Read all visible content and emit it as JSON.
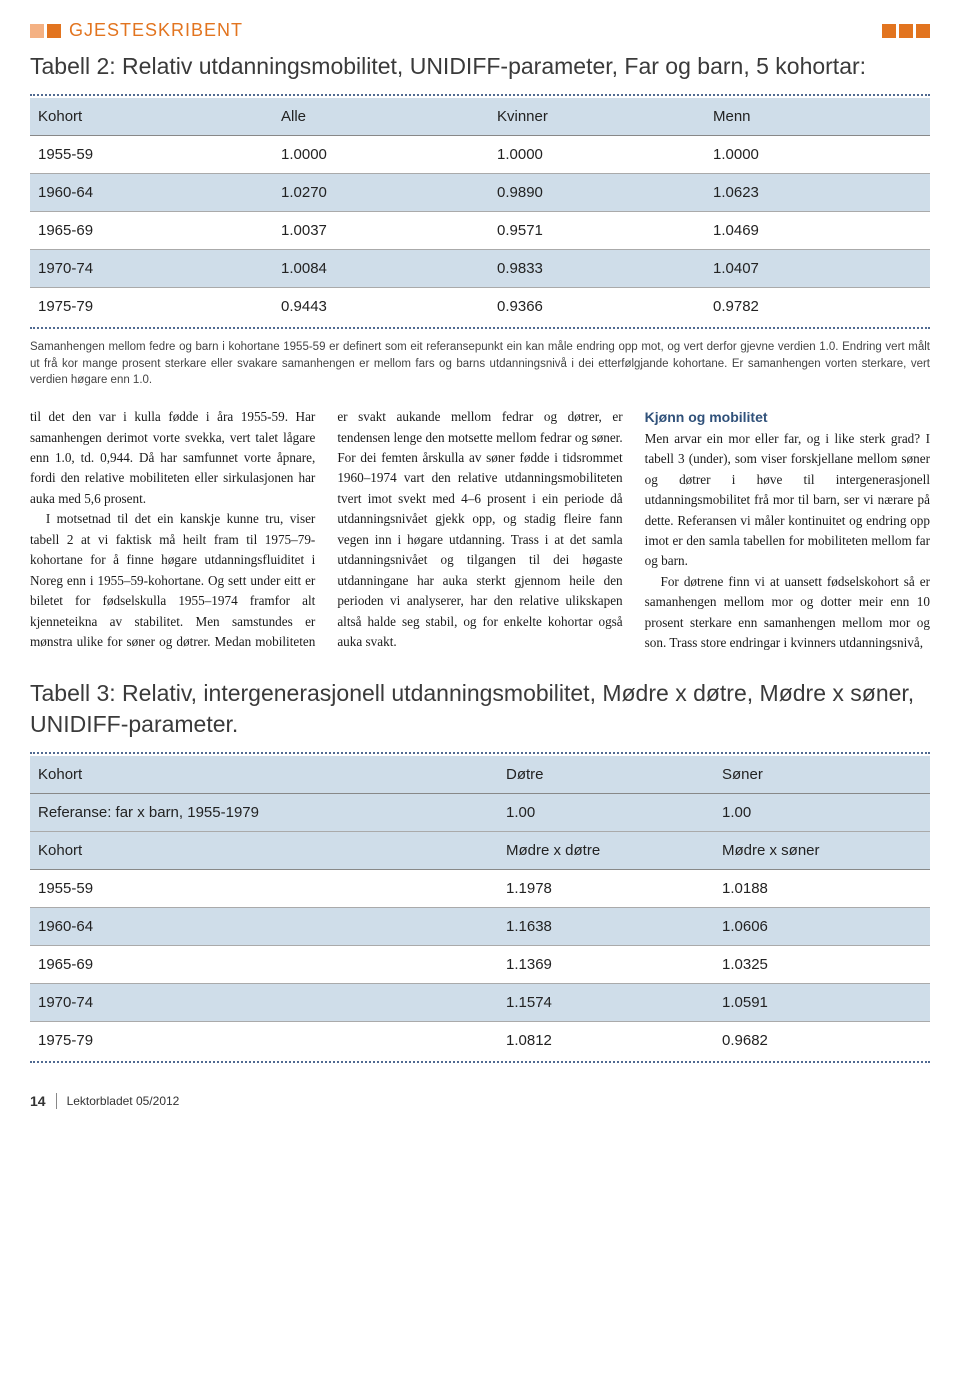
{
  "colors": {
    "orange": "#e2741f",
    "blue_header": "#cfdde9",
    "dot_border": "#506a91",
    "subhead": "#30517a",
    "sq_light_orange": "#f4b183",
    "sq_orange": "#e2741f"
  },
  "section_label": "GJESTESKRIBENT",
  "table2": {
    "title": "Tabell 2: Relativ utdanningsmobilitet, UNIDIFF-parameter, Far og barn, 5 kohortar:",
    "columns": [
      "Kohort",
      "Alle",
      "Kvinner",
      "Menn"
    ],
    "rows": [
      [
        "1955-59",
        "1.0000",
        "1.0000",
        "1.0000"
      ],
      [
        "1960-64",
        "1.0270",
        "0.9890",
        "1.0623"
      ],
      [
        "1965-69",
        "1.0037",
        "0.9571",
        "1.0469"
      ],
      [
        "1970-74",
        "1.0084",
        "0.9833",
        "1.0407"
      ],
      [
        "1975-79",
        "0.9443",
        "0.9366",
        "0.9782"
      ]
    ],
    "highlight_rows": [
      1,
      3
    ],
    "col_widths": [
      "27%",
      "24%",
      "24%",
      "25%"
    ]
  },
  "caption2": "Samanhengen mellom fedre og barn i kohortane 1955-59 er definert som eit referansepunkt ein kan måle endring opp mot, og vert derfor gjevne verdien 1.0. Endring vert målt ut frå kor mange prosent sterkare eller svakare samanhengen er mellom fars og barns utdanningsnivå i dei etterfølgjande kohortane. Er samanhengen vorten sterkare, vert verdien høgare enn 1.0.",
  "body": {
    "p1": "til det den var i kulla fødde i åra 1955-59. Har samanhengen derimot vorte svekka, vert talet lågare enn 1.0, td. 0,944. Då har samfunnet vorte åpnare, fordi den relative mobiliteten eller sirkulasjonen har auka med 5,6 prosent.",
    "p2": "I motsetnad til det ein kanskje kunne tru, viser tabell 2 at vi faktisk må heilt fram til 1975–79-kohortane for å finne høgare utdanningsfluiditet i Noreg enn i 1955–59-kohortane. Og sett under eitt er biletet for fødselskulla 1955–1974 framfor alt kjenneteikna av stabilitet. Men samstundes er mønstra ulike for søner og døtrer. Medan mobiliteten er svakt aukande mellom fedrar og døtrer, er tendensen lenge den motsette mellom fedrar og søner. For dei femten årskulla av søner fødde i tidsrommet 1960–1974 vart den relative utdanningsmobiliteten tvert imot svekt med 4–6 prosent i ein periode då utdanningsnivået gjekk opp, og stadig fleire fann vegen inn i høgare utdanning. Trass i at det samla utdanningsnivået og tilgangen til dei høgaste utdanningane har auka sterkt gjennom heile den perioden vi analyserer, har den relative ulikskapen altså halde seg stabil, og for enkelte kohortar også auka svakt.",
    "subhead": "Kjønn og mobilitet",
    "p3": "Men arvar ein mor eller far, og i like sterk grad? I tabell 3 (under), som viser forskjellane mellom søner og døtrer i høve til intergenerasjonell utdanningsmobilitet frå mor til barn, ser vi nærare på dette. Referansen vi måler kontinuitet og endring opp imot er den samla tabellen for mobiliteten mellom far og barn.",
    "p4": "For døtrene finn vi at uansett fødselskohort så er samanhengen mellom mor og dotter meir enn 10 prosent sterkare enn samanhengen mellom mor og son. Trass store endringar i kvinners utdanningsnivå,"
  },
  "table3": {
    "title": "Tabell 3: Relativ, intergenerasjonell utdanningsmobilitet, Mødre x døtre, Mødre x søner, UNIDIFF-parameter.",
    "header1": [
      "Kohort",
      "Døtre",
      "Søner"
    ],
    "ref_row": [
      "Referanse: far x barn, 1955-1979",
      "1.00",
      "1.00"
    ],
    "header2": [
      "Kohort",
      "Mødre x døtre",
      "Mødre x søner"
    ],
    "rows": [
      [
        "1955-59",
        "1.1978",
        "1.0188"
      ],
      [
        "1960-64",
        "1.1638",
        "1.0606"
      ],
      [
        "1965-69",
        "1.1369",
        "1.0325"
      ],
      [
        "1970-74",
        "1.1574",
        "1.0591"
      ],
      [
        "1975-79",
        "1.0812",
        "0.9682"
      ]
    ],
    "highlight_rows": [
      1,
      3
    ],
    "col_widths": [
      "52%",
      "24%",
      "24%"
    ]
  },
  "footer": {
    "page": "14",
    "pub": "Lektorbladet 05/2012"
  }
}
